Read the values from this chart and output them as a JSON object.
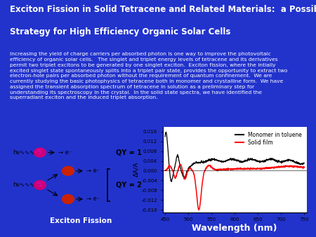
{
  "title_line1": "Exciton Fission in Solid Tetracene and Related Materials:  a Possible",
  "title_line2": "Strategy for High Efficiency Organic Solar Cells",
  "body_text": "Increasing the yield of charge carriers per absorbed photon is one way to improve the photovoltaic\nefficiency of organic solar cells.   The singlet and triplet energy levels of tetracene and its derivatives\npermit two triplet excitons to be generated by one singlet exciton.  Exciton fission, where the intially\nexcited singlet state spontaneously splits into a triplet pair state, provides the opportunity to extract two\nelectron-hole pairs per absorbed photon without the requirement of quantum confinement.  We are\ncurrently studying the basic photophysics of tetracene both in monomer and crystalline form.  We have\nassigned the transient absorption spectrum of tetracene in solution as a preliminary step for\nunderstanding its spectroscopy in the crystal.  In the solid state spectra, we have identified the\nsuperradiant exciton and the induced triplet absorption.",
  "bg_color": "#2233cc",
  "title_color": "#ffffff",
  "body_color": "#ffffff",
  "plot_bg": "#ffffff",
  "diagram_bg": "#ffffff",
  "xlabel": "Wavelength (nm)",
  "ylabel": "ΔA/A",
  "ylim": [
    -0.017,
    0.018
  ],
  "xlim": [
    445,
    755
  ],
  "xticks": [
    450,
    500,
    550,
    600,
    650,
    700,
    750
  ],
  "yticks": [
    -0.016,
    -0.012,
    -0.008,
    -0.004,
    0.0,
    0.004,
    0.008,
    0.012,
    0.016
  ],
  "legend_entries": [
    "Monomer in toluene",
    "Solid film"
  ],
  "legend_colors": [
    "black",
    "red"
  ],
  "diagram_label": "Exciton Fission",
  "singlet_color": "#cc0077",
  "triplet_color": "#cc2200",
  "label_magenta": "#dd00aa",
  "label_red": "#cc2200",
  "qy_label_color": "#000000"
}
